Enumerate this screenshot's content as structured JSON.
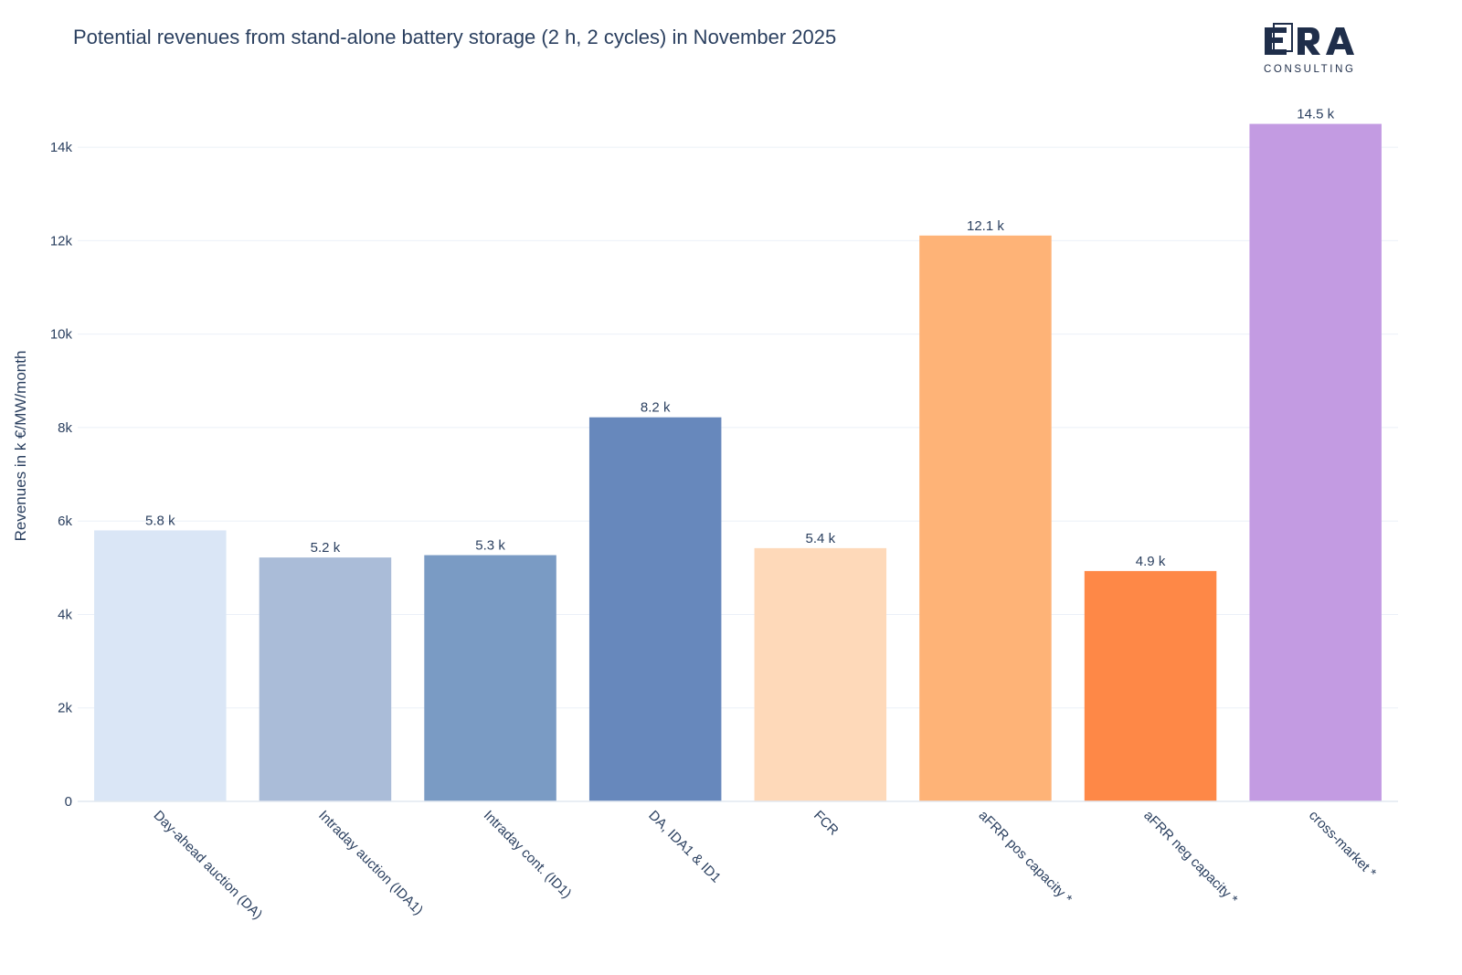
{
  "chart_data": {
    "type": "bar",
    "title": "Potential revenues from stand-alone battery storage (2 h, 2 cycles) in November 2025",
    "xlabel": "",
    "ylabel": "Revenues in k €/MW/month",
    "ylim": [
      0,
      15000
    ],
    "yticks": [
      0,
      2000,
      4000,
      6000,
      8000,
      10000,
      12000,
      14000
    ],
    "ytick_labels": [
      "0",
      "2k",
      "4k",
      "6k",
      "8k",
      "10k",
      "12k",
      "14k"
    ],
    "grid": true,
    "categories": [
      "Day-ahead auction (DA)",
      "Intraday auction (IDA1)",
      "Intraday cont. (ID1)",
      "DA, IDA1 & ID1",
      "FCR",
      "aFRR pos capacity *",
      "aFRR neg capacity *",
      "cross-market *"
    ],
    "values": [
      5800,
      5220,
      5270,
      8220,
      5420,
      12110,
      4930,
      14500
    ],
    "data_labels": [
      "5.8 k",
      "5.2 k",
      "5.3 k",
      "8.2 k",
      "5.4 k",
      "12.1 k",
      "4.9 k",
      "14.5 k"
    ],
    "colors": [
      "#dae6f6",
      "#aabcd8",
      "#7a9bc4",
      "#6788bc",
      "#fed9b9",
      "#feb377",
      "#fe8847",
      "#c39be2"
    ]
  },
  "logo": {
    "brand": "ERA",
    "tagline": "CONSULTING",
    "color": "#1f2e4a"
  }
}
